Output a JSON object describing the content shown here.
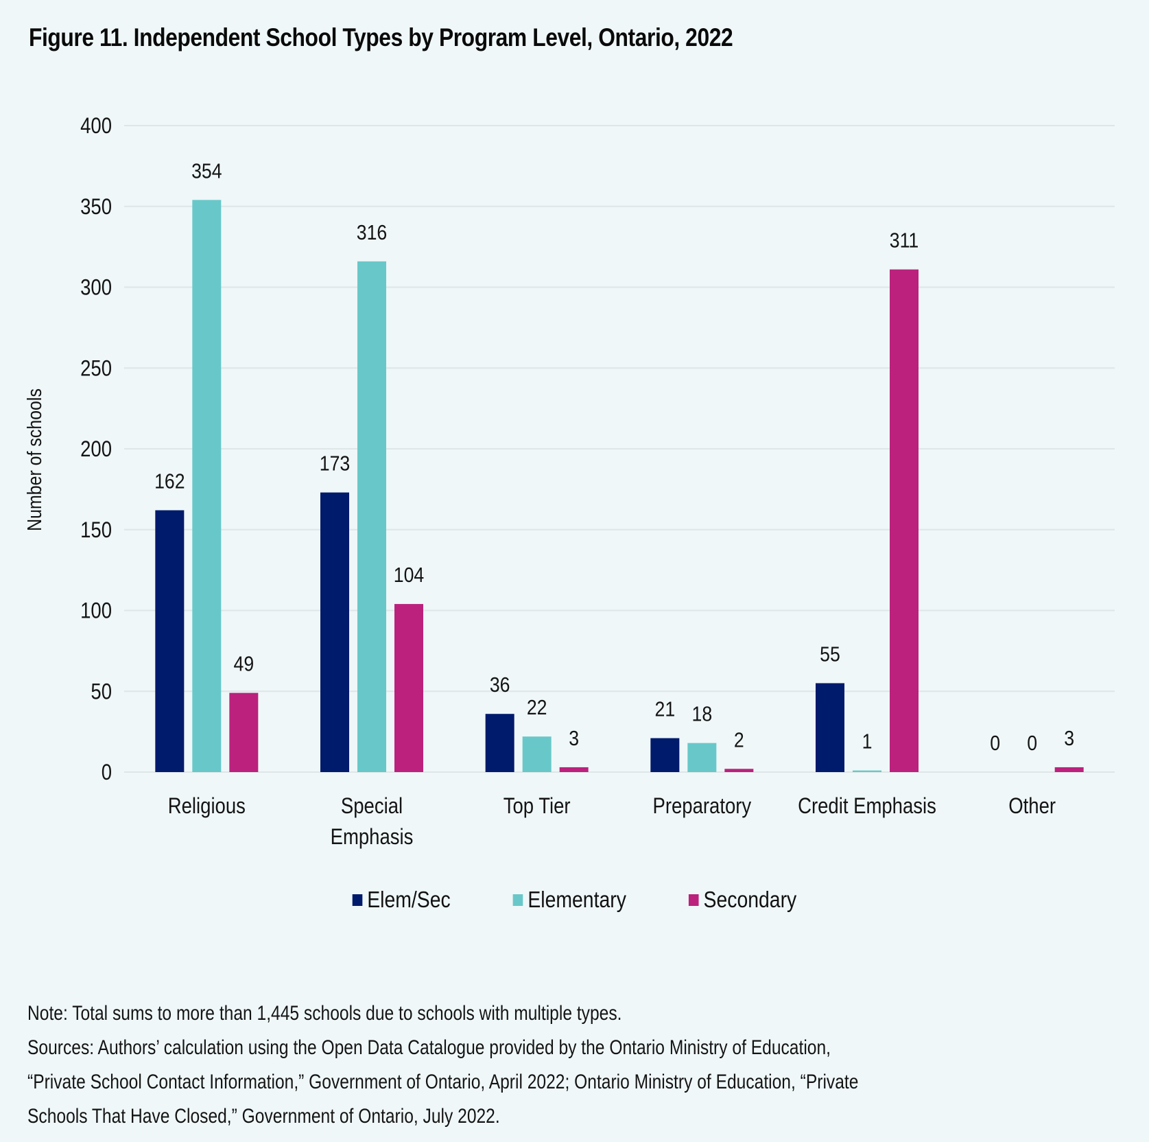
{
  "figure": {
    "title": "Figure 11. Independent School Types by Program Level, Ontario, 2022"
  },
  "chart_data": {
    "type": "bar",
    "title": "Figure 11. Independent School Types by Program Level, Ontario, 2022",
    "xlabel": "",
    "ylabel": "Number of schools",
    "ylim": [
      0,
      400
    ],
    "yticks": [
      0,
      50,
      100,
      150,
      200,
      250,
      300,
      350,
      400
    ],
    "grid": true,
    "legend_position": "bottom-center",
    "categories": [
      [
        "Religious"
      ],
      [
        "Special",
        "Emphasis"
      ],
      [
        "Top Tier"
      ],
      [
        "Preparatory"
      ],
      [
        "Credit Emphasis"
      ],
      [
        "Other"
      ]
    ],
    "category_names": [
      "Religious",
      "Special Emphasis",
      "Top Tier",
      "Preparatory",
      "Credit Emphasis",
      "Other"
    ],
    "series": [
      {
        "name": "Elem/Sec",
        "color": "#001a6c",
        "values": [
          162,
          173,
          36,
          21,
          55,
          0
        ]
      },
      {
        "name": "Elementary",
        "color": "#68c8c9",
        "values": [
          354,
          316,
          22,
          18,
          1,
          0
        ]
      },
      {
        "name": "Secondary",
        "color": "#bb217d",
        "values": [
          49,
          104,
          3,
          2,
          311,
          3
        ]
      }
    ],
    "gridline_color": "#dfe6e8"
  },
  "legend": {
    "items": [
      {
        "label": "Elem/Sec",
        "color": "#001a6c"
      },
      {
        "label": "Elementary",
        "color": "#68c8c9"
      },
      {
        "label": "Secondary",
        "color": "#bb217d"
      }
    ]
  },
  "notes": {
    "lines": [
      "Note: Total sums to more than 1,445 schools due to schools with multiple types.",
      "Sources: Authors’ calculation using the Open Data Catalogue provided by the Ontario Ministry of Education,",
      "“Private School Contact Information,” Government of Ontario, April 2022; Ontario Ministry of Education, “Private",
      "Schools That Have Closed,” Government of Ontario, July 2022."
    ]
  }
}
